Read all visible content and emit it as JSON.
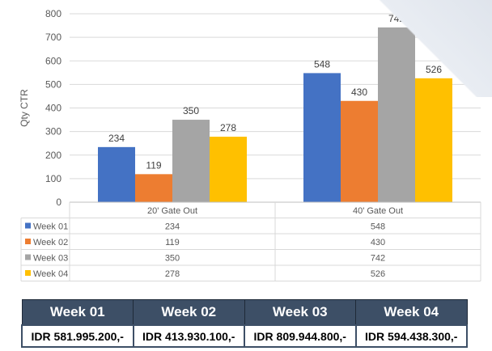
{
  "chart_data": {
    "type": "bar",
    "title": "",
    "xlabel": "",
    "ylabel": "Qty CTR",
    "ylim": [
      0,
      800
    ],
    "yticks": [
      0,
      100,
      200,
      300,
      400,
      500,
      600,
      700,
      800
    ],
    "grid": true,
    "categories": [
      "20' Gate Out",
      "40' Gate Out"
    ],
    "series": [
      {
        "name": "Week 01",
        "values": [
          234,
          548
        ],
        "color": "#4472c4"
      },
      {
        "name": "Week 02",
        "values": [
          119,
          430
        ],
        "color": "#ed7d31"
      },
      {
        "name": "Week 03",
        "values": [
          350,
          742
        ],
        "color": "#a5a5a5"
      },
      {
        "name": "Week 04",
        "values": [
          278,
          526
        ],
        "color": "#ffc000"
      }
    ],
    "data_table": true
  },
  "summary_table": {
    "headers": [
      "Week 01",
      "Week 02",
      "Week 03",
      "Week 04"
    ],
    "values": [
      "IDR 581.995.200,-",
      "IDR 413.930.100,-",
      "IDR 809.944.800,-",
      "IDR 594.438.300,-"
    ]
  }
}
